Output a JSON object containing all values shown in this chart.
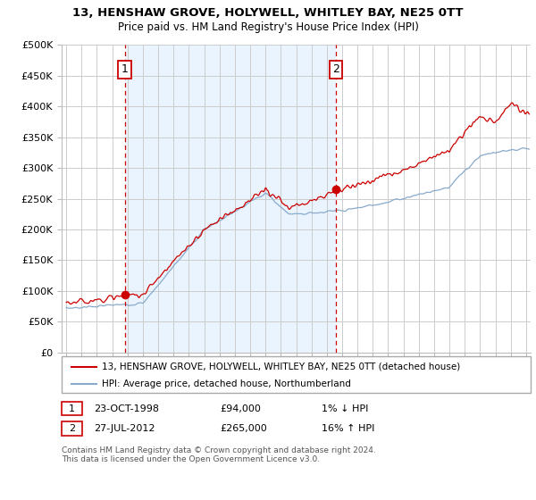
{
  "title": "13, HENSHAW GROVE, HOLYWELL, WHITLEY BAY, NE25 0TT",
  "subtitle": "Price paid vs. HM Land Registry's House Price Index (HPI)",
  "ylim": [
    0,
    500000
  ],
  "yticks": [
    0,
    50000,
    100000,
    150000,
    200000,
    250000,
    300000,
    350000,
    400000,
    450000,
    500000
  ],
  "ytick_labels": [
    "£0",
    "£50K",
    "£100K",
    "£150K",
    "£200K",
    "£250K",
    "£300K",
    "£350K",
    "£400K",
    "£450K",
    "£500K"
  ],
  "sale1_date_num": 1998.81,
  "sale1_price": 94000,
  "sale2_date_num": 2012.57,
  "sale2_price": 265000,
  "line_color_property": "#cc0000",
  "line_color_hpi": "#88aacc",
  "legend_property": "13, HENSHAW GROVE, HOLYWELL, WHITLEY BAY, NE25 0TT (detached house)",
  "legend_hpi": "HPI: Average price, detached house, Northumberland",
  "marker1_label": "1",
  "marker2_label": "2",
  "table_row1": [
    "1",
    "23-OCT-1998",
    "£94,000",
    "1% ↓ HPI"
  ],
  "table_row2": [
    "2",
    "27-JUL-2012",
    "£265,000",
    "16% ↑ HPI"
  ],
  "footer": "Contains HM Land Registry data © Crown copyright and database right 2024.\nThis data is licensed under the Open Government Licence v3.0.",
  "vline_color": "#cc0000",
  "shade_color": "#ddeeff",
  "background_color": "#ffffff",
  "grid_color": "#cccccc",
  "xlim_left": 1994.7,
  "xlim_right": 2025.3
}
